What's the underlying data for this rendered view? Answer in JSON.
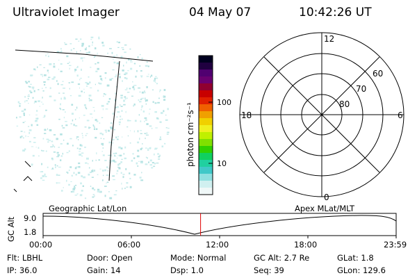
{
  "header": {
    "instrument": "Ultraviolet Imager",
    "date": "04 May 07",
    "time": "10:42:26 UT"
  },
  "colorbar": {
    "unit_label": "photon cm⁻²s⁻¹",
    "ticks": [
      "100",
      "10"
    ],
    "colors": [
      "#000020",
      "#200040",
      "#500070",
      "#6a0070",
      "#900030",
      "#c80000",
      "#e02000",
      "#f06000",
      "#f0a000",
      "#f0d000",
      "#f0f020",
      "#c0f000",
      "#80e000",
      "#30d000",
      "#10d060",
      "#20d0a0",
      "#40c8c8",
      "#90e0e0",
      "#d0f0f0",
      "#f0f8f8"
    ]
  },
  "polar_grid": {
    "mlt_labels": {
      "top": "12",
      "left": "18",
      "right": "6",
      "bottom": "0"
    },
    "lat_labels": [
      "60",
      "70",
      "80"
    ]
  },
  "timeline": {
    "axis_title": "GC Alt",
    "y_ticks": [
      "9.0",
      "1.8"
    ],
    "left_label": "Geographic Lat/Lon",
    "right_label": "Apex  MLat/MLT",
    "x_ticks": [
      "00:00",
      "06:00",
      "12:00",
      "18:00",
      "23:59"
    ],
    "current_time_fraction": 0.446
  },
  "footer": {
    "row1": [
      {
        "key": "Flt:",
        "val": "LBHL"
      },
      {
        "key": "Door:",
        "val": "Open"
      },
      {
        "key": "Mode:",
        "val": "Normal"
      },
      {
        "key": "GC Alt:",
        "val": "2.7 Re"
      },
      {
        "key": "GLat:",
        "val": "1.8"
      }
    ],
    "row2": [
      {
        "key": "IP:",
        "val": "36.0"
      },
      {
        "key": "Gain:",
        "val": "14"
      },
      {
        "key": "Dsp:",
        "val": "1.0"
      },
      {
        "key": "Seq:",
        "val": "39"
      },
      {
        "key": "GLon:",
        "val": "129.6"
      }
    ]
  }
}
